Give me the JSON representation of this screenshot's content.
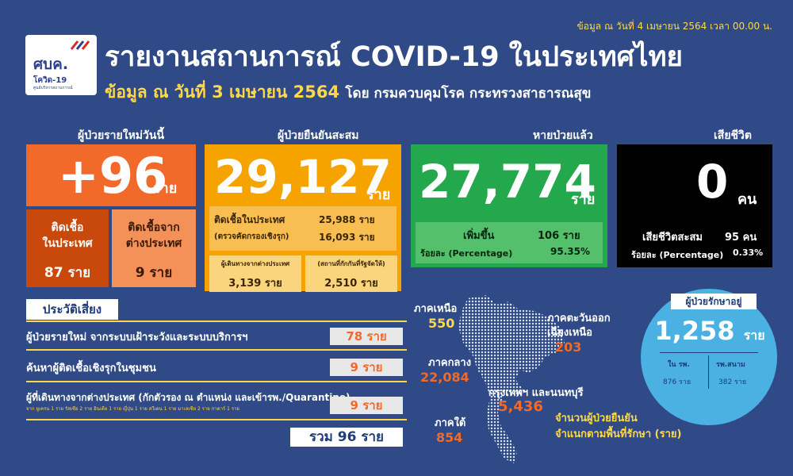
{
  "header": {
    "data_as_of": "ข้อมูล ณ วันที่ 4 เมษายน 2564 เวลา 00.00 น.",
    "title": "รายงานสถานการณ์ COVID-19 ในประเทศไทย",
    "subtitle_date": "ข้อมูล ณ วันที่ 3 เมษายน 2564",
    "subtitle_source": "โดย กรมควบคุมโรค กระทรวงสาธารณสุข",
    "logo_main": "ศบค.",
    "logo_sub": "โควิด-19",
    "logo_small": "ศูนย์บริหารสถานการณ์"
  },
  "new_cases": {
    "label": "ผู้ป่วยรายใหม่วันนี้",
    "value": "+96",
    "unit": "ราย",
    "local_label_1": "ติดเชื้อ",
    "local_label_2": "ในประเทศ",
    "local_value": "87 ราย",
    "abroad_label_1": "ติดเชื้อจาก",
    "abroad_label_2": "ต่างประเทศ",
    "abroad_value": "9 ราย"
  },
  "cumulative": {
    "label": "ผู้ป่วยยืนยันสะสม",
    "value": "29,127",
    "unit": "ราย",
    "domestic_label": "ติดเชื้อในประเทศ",
    "domestic_value": "25,988 ราย",
    "active_search_label": "(ตรวจคัดกรองเชิงรุก)",
    "active_search_value": "16,093 ราย",
    "travelers_label": "ผู้เดินทางจากต่างประเทศ",
    "travelers_value": "3,139 ราย",
    "quarantine_label": "(สถานที่กักกันที่รัฐจัดให้)",
    "quarantine_value": "2,510 ราย"
  },
  "recovered": {
    "label": "หายป่วยแล้ว",
    "value": "27,774",
    "unit": "ราย",
    "increase_label": "เพิ่มขึ้น",
    "increase_value": "106 ราย",
    "pct_label": "ร้อยละ (Percentage)",
    "pct_value": "95.35%"
  },
  "deaths": {
    "label": "เสียชีวิต",
    "value": "0",
    "unit": "คน",
    "cum_label": "เสียชีวิตสะสม",
    "cum_value": "95 คน",
    "pct_label": "ร้อยละ (Percentage)",
    "pct_value": "0.33%"
  },
  "risk": {
    "title": "ประวัติเสี่ยง",
    "items": [
      {
        "label": "ผู้ป่วยรายใหม่ จากระบบเฝ้าระวังและระบบบริการฯ",
        "value": "78 ราย"
      },
      {
        "label": "ค้นหาผู้ติดเชื้อเชิงรุกในชุมชน",
        "value": "9 ราย"
      },
      {
        "label": "ผู้ที่เดินทางจากต่างประเทศ (กักตัวรอง ณ ตำแหน่ง และเข้ารพ./Quarantine)",
        "value": "9 ราย"
      }
    ],
    "note": "จาก ยูเครน 1 ราย รัสเซีย 2 ราย อินเดีย 1 ราย ญี่ปุ่น 1 ราย สวีเดน 1 ราย มาเลเซีย 2 ราย กาตาร์ 1 ราย",
    "total": "รวม 96 ราย"
  },
  "regions": {
    "north_label": "ภาคเหนือ",
    "north_value": "550",
    "northeast_label_1": "ภาคตะวันออก",
    "northeast_label_2": "เฉียงเหนือ",
    "northeast_value": "203",
    "central_label": "ภาคกลาง",
    "central_value": "22,084",
    "bangkok_label": "กรุงเทพฯ และนนทบุรี",
    "bangkok_value": "5,436",
    "south_label": "ภาคใต้",
    "south_value": "854",
    "legend_1": "จำนวนผู้ป่วยยืนยัน",
    "legend_2": "จำแนกตามพื้นที่รักษา (ราย)"
  },
  "hospital": {
    "label": "ผู้ป่วยรักษาอยู่",
    "value": "1,258",
    "unit": "ราย",
    "rp_label": "ใน รพ.",
    "rp_value": "876 ราย",
    "field_label": "รพ.สนาม",
    "field_value": "382 ราย"
  },
  "colors": {
    "background": "#2f4a86",
    "new_cases": "#f26a2a",
    "cumulative": "#f6a300",
    "recovered": "#23a84e",
    "deaths": "#000000",
    "hospital": "#4bb1e3",
    "highlight": "#ffd84a"
  }
}
